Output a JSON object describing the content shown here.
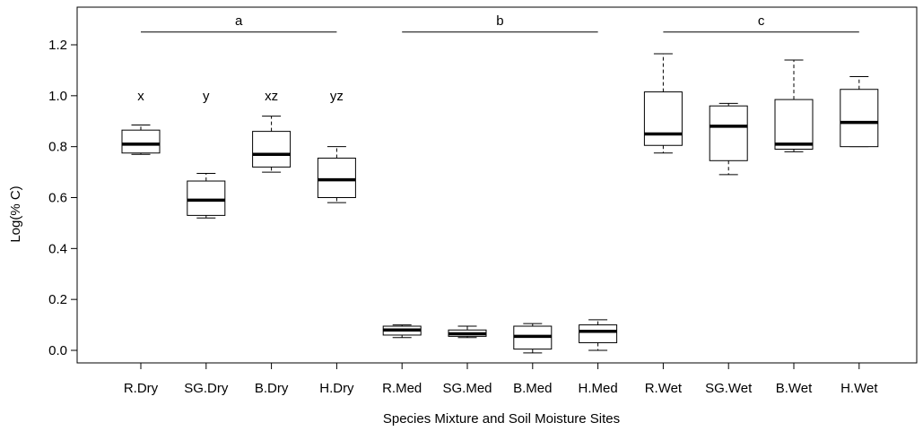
{
  "chart_data": {
    "type": "box",
    "title": "",
    "xlabel": "Species Mixture and Soil Moisture Sites",
    "ylabel": "Log(% C)",
    "ylim": [
      -0.05,
      1.34
    ],
    "yticks": [
      "0.0",
      "0.2",
      "0.4",
      "0.6",
      "0.8",
      "1.0",
      "1.2"
    ],
    "grid": false,
    "categories": [
      "R.Dry",
      "SG.Dry",
      "B.Dry",
      "H.Dry",
      "R.Med",
      "SG.Med",
      "B.Med",
      "H.Med",
      "R.Wet",
      "SG.Wet",
      "B.Wet",
      "H.Wet"
    ],
    "boxes": [
      {
        "min": 0.77,
        "q1": 0.775,
        "median": 0.81,
        "q3": 0.865,
        "max": 0.885
      },
      {
        "min": 0.52,
        "q1": 0.53,
        "median": 0.59,
        "q3": 0.665,
        "max": 0.695
      },
      {
        "min": 0.7,
        "q1": 0.72,
        "median": 0.77,
        "q3": 0.86,
        "max": 0.92
      },
      {
        "min": 0.58,
        "q1": 0.6,
        "median": 0.67,
        "q3": 0.755,
        "max": 0.8
      },
      {
        "min": 0.05,
        "q1": 0.06,
        "median": 0.08,
        "q3": 0.095,
        "max": 0.1
      },
      {
        "min": 0.05,
        "q1": 0.055,
        "median": 0.065,
        "q3": 0.08,
        "max": 0.095
      },
      {
        "min": -0.01,
        "q1": 0.005,
        "median": 0.055,
        "q3": 0.095,
        "max": 0.105
      },
      {
        "min": 0.0,
        "q1": 0.03,
        "median": 0.075,
        "q3": 0.1,
        "max": 0.12
      },
      {
        "min": 0.775,
        "q1": 0.805,
        "median": 0.85,
        "q3": 1.015,
        "max": 1.165
      },
      {
        "min": 0.69,
        "q1": 0.745,
        "median": 0.88,
        "q3": 0.96,
        "max": 0.97
      },
      {
        "min": 0.78,
        "q1": 0.79,
        "median": 0.81,
        "q3": 0.985,
        "max": 1.14
      },
      {
        "min": 0.8,
        "q1": 0.8,
        "median": 0.895,
        "q3": 1.025,
        "max": 1.075
      }
    ],
    "box_letters": [
      "x",
      "y",
      "xz",
      "yz",
      "",
      "",
      "",
      "",
      "",
      "",
      "",
      ""
    ],
    "group_brackets": [
      {
        "label": "a",
        "from": 0,
        "to": 3,
        "y": 1.25
      },
      {
        "label": "b",
        "from": 4,
        "to": 7,
        "y": 1.25
      },
      {
        "label": "c",
        "from": 8,
        "to": 11,
        "y": 1.25
      }
    ],
    "letters_y": 1.0
  }
}
